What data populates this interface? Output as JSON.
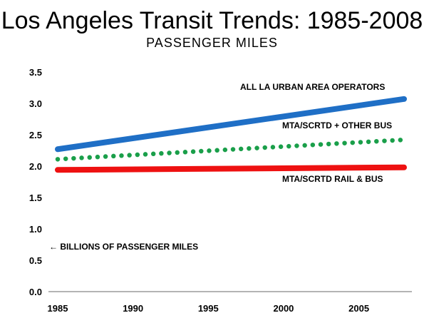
{
  "chart_data": {
    "type": "line",
    "title": "Los Angeles Transit Trends: 1985-2008",
    "subtitle": "PASSENGER MILES",
    "x_tick_labels": [
      "1985",
      "1990",
      "1995",
      "2000",
      "2005"
    ],
    "y_tick_labels": [
      "0.0",
      "0.5",
      "1.0",
      "1.5",
      "2.0",
      "2.5",
      "3.0",
      "3.5"
    ],
    "xlim": [
      1985,
      2008
    ],
    "ylim": [
      0,
      3.5
    ],
    "grid": false,
    "annotation": "BILLIONS OF PASSENGER MILES",
    "series": [
      {
        "name": "ALL LA URBAN AREA OPERATORS",
        "x": [
          1985,
          2008
        ],
        "values": [
          2.27,
          3.07
        ],
        "color": "#1f6fc6",
        "style": "solid"
      },
      {
        "name": "MTA/SCRTD + OTHER BUS",
        "x": [
          1985,
          2008
        ],
        "values": [
          2.11,
          2.42
        ],
        "color": "#1a9f4a",
        "style": "dotted"
      },
      {
        "name": "MTA/SCRTD RAIL & BUS",
        "x": [
          1985,
          2008
        ],
        "values": [
          1.94,
          1.98
        ],
        "color": "#ee1111",
        "style": "solid"
      }
    ]
  }
}
